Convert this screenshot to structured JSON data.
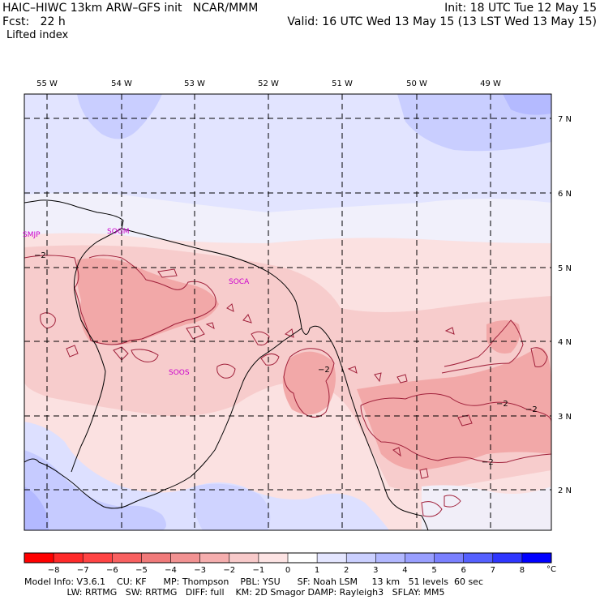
{
  "header": {
    "line1_left": "HAIC–HIWC 13km ARW–GFS init   NCAR/MMM",
    "line1_right": "Init: 18 UTC Tue 12 May 15",
    "line2_left": "Fcst:   22 h",
    "line2_right": "Valid: 16 UTC Wed 13 May 15 (13 LST Wed 13 May 15)",
    "field": "Lifted index"
  },
  "lon_labels": [
    "55 W",
    "54 W",
    "53 W",
    "52 W",
    "51 W",
    "50 W",
    "49 W"
  ],
  "lat_labels": [
    "7 N",
    "6 N",
    "5 N",
    "4 N",
    "3 N",
    "2 N"
  ],
  "stations": [
    "SMJP",
    "SOGM",
    "SOCA",
    "SOOS"
  ],
  "contour_labels": [
    "−2",
    "−2",
    "−2",
    "−2",
    "−2"
  ],
  "colorbar": {
    "ticks": [
      "−8",
      "−7",
      "−6",
      "−5",
      "−4",
      "−3",
      "−2",
      "−1",
      "0",
      "1",
      "2",
      "3",
      "4",
      "5",
      "6",
      "7",
      "8"
    ],
    "unit": "°C",
    "colors": [
      "#ff0000",
      "#ff2a2a",
      "#ff4444",
      "#f86060",
      "#f07a7a",
      "#f29292",
      "#f5aeae",
      "#f8caca",
      "#fde4e4",
      "#ffffff",
      "#e4e6ff",
      "#cbd0ff",
      "#b2b8ff",
      "#999fff",
      "#7a80ff",
      "#5560ff",
      "#2e36ff",
      "#0000ff"
    ]
  },
  "model_info": {
    "line1": "Model Info: V3.6.1    CU: KF      MP: Thompson    PBL: YSU      SF: Noah LSM     13 km   51 levels  60 sec",
    "line2": "               LW: RRTMG   SW: RRTMG   DIFF: full    KM: 2D Smagor DAMP: Rayleigh3   SFLAY: MM5"
  }
}
